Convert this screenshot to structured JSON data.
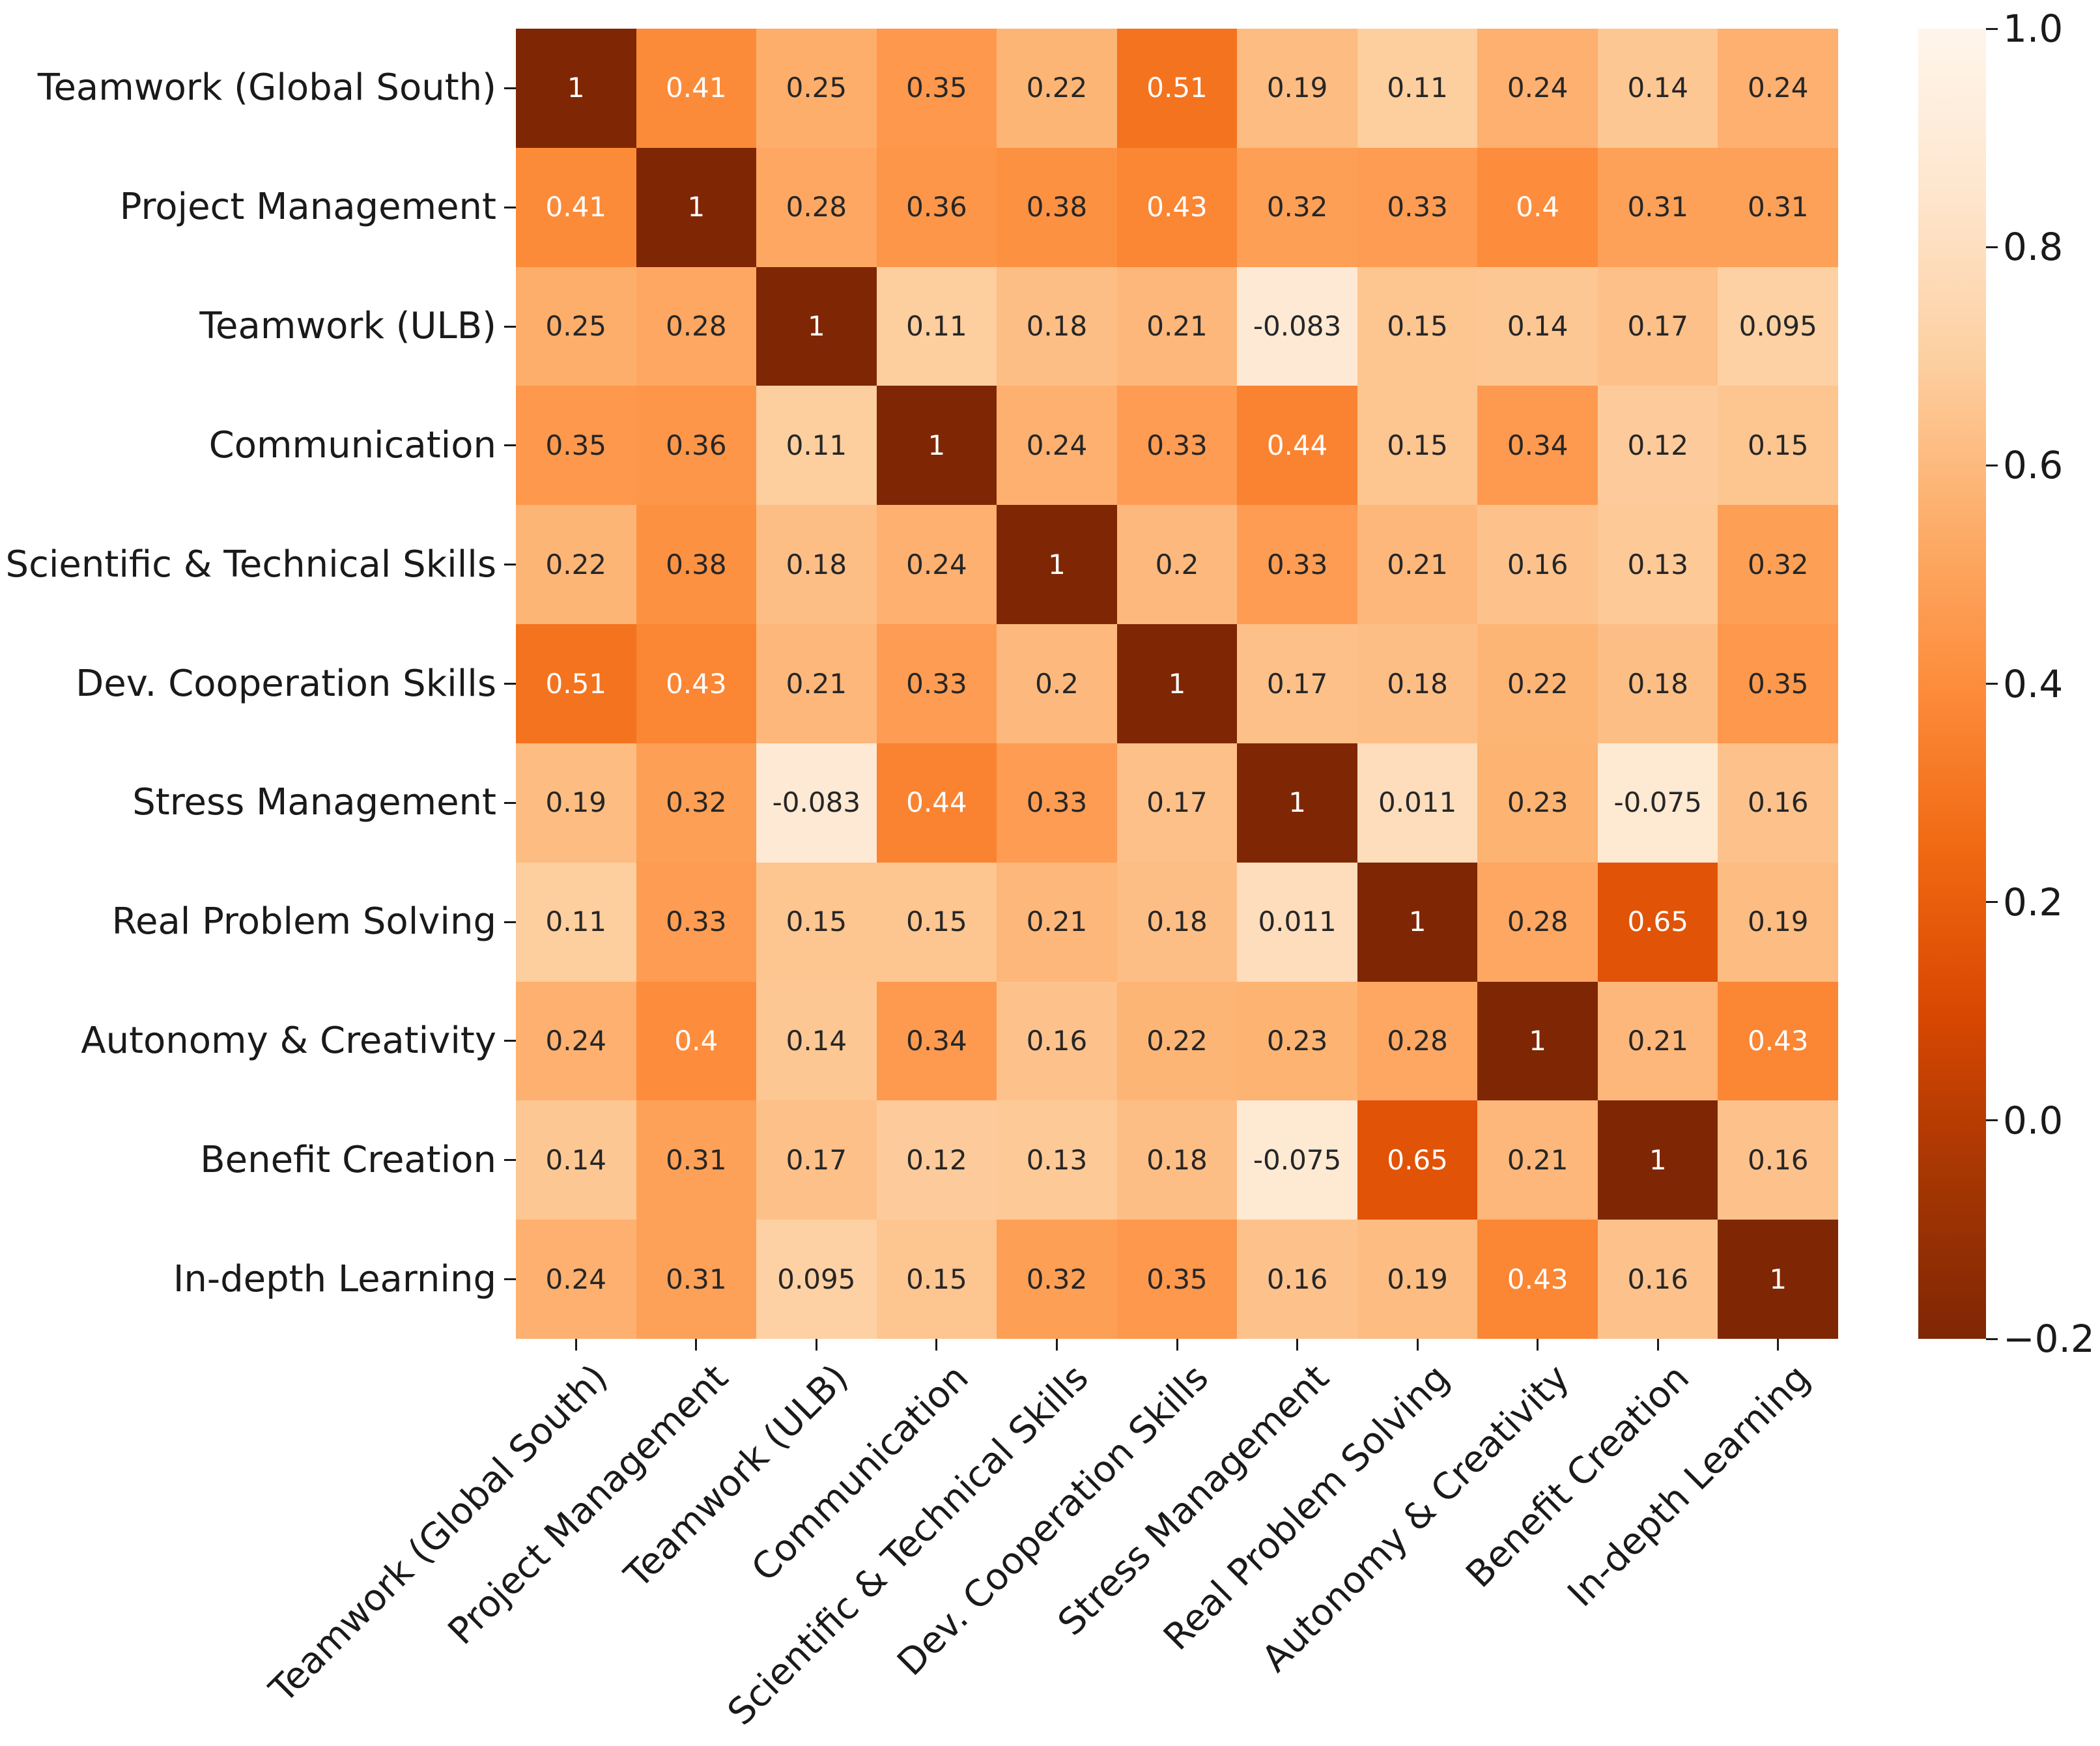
{
  "chart_data": {
    "type": "heatmap",
    "title": "",
    "xlabel": "",
    "ylabel": "",
    "grid": false,
    "legend_position": "right-colorbar",
    "categories": [
      "Teamwork (Global South)",
      "Project Management",
      "Teamwork (ULB)",
      "Communication",
      "Scientific & Technical Skills",
      "Dev. Cooperation Skills",
      "Stress Management",
      "Real Problem Solving",
      "Autonomy & Creativity",
      "Benefit Creation",
      "In-depth Learning"
    ],
    "matrix": [
      [
        1,
        0.41,
        0.25,
        0.35,
        0.22,
        0.51,
        0.19,
        0.11,
        0.24,
        0.14,
        0.24
      ],
      [
        0.41,
        1,
        0.28,
        0.36,
        0.38,
        0.43,
        0.32,
        0.33,
        0.4,
        0.31,
        0.31
      ],
      [
        0.25,
        0.28,
        1,
        0.11,
        0.18,
        0.21,
        -0.083,
        0.15,
        0.14,
        0.17,
        0.095
      ],
      [
        0.35,
        0.36,
        0.11,
        1,
        0.24,
        0.33,
        0.44,
        0.15,
        0.34,
        0.12,
        0.15
      ],
      [
        0.22,
        0.38,
        0.18,
        0.24,
        1,
        0.2,
        0.33,
        0.21,
        0.16,
        0.13,
        0.32
      ],
      [
        0.51,
        0.43,
        0.21,
        0.33,
        0.2,
        1,
        0.17,
        0.18,
        0.22,
        0.18,
        0.35
      ],
      [
        0.19,
        0.32,
        -0.083,
        0.44,
        0.33,
        0.17,
        1,
        0.011,
        0.23,
        -0.075,
        0.16
      ],
      [
        0.11,
        0.33,
        0.15,
        0.15,
        0.21,
        0.18,
        0.011,
        1,
        0.28,
        0.65,
        0.19
      ],
      [
        0.24,
        0.4,
        0.14,
        0.34,
        0.16,
        0.22,
        0.23,
        0.28,
        1,
        0.21,
        0.43
      ],
      [
        0.14,
        0.31,
        0.17,
        0.12,
        0.13,
        0.18,
        -0.075,
        0.65,
        0.21,
        1,
        0.16
      ],
      [
        0.24,
        0.31,
        0.095,
        0.15,
        0.32,
        0.35,
        0.16,
        0.19,
        0.43,
        0.16,
        1
      ]
    ],
    "annotation_format": ".2g",
    "annotation_dark_text": "#262626",
    "annotation_light_text": "#ffffff",
    "colormap": {
      "name": "Oranges",
      "stops": [
        "#fff5eb",
        "#fee6ce",
        "#fdd0a2",
        "#fdae6b",
        "#fd8d3c",
        "#f16913",
        "#d94801",
        "#a63603",
        "#7f2704"
      ]
    },
    "colorbar": {
      "vmin": -0.2,
      "vmax": 1.0,
      "tick_values": [
        1.0,
        0.8,
        0.6,
        0.4,
        0.2,
        0.0,
        -0.2
      ],
      "tick_labels": [
        "1.0",
        "0.8",
        "0.6",
        "0.4",
        "0.2",
        "0.0",
        "−0.2"
      ]
    },
    "axis_tick_color": "#1a1a1a"
  }
}
